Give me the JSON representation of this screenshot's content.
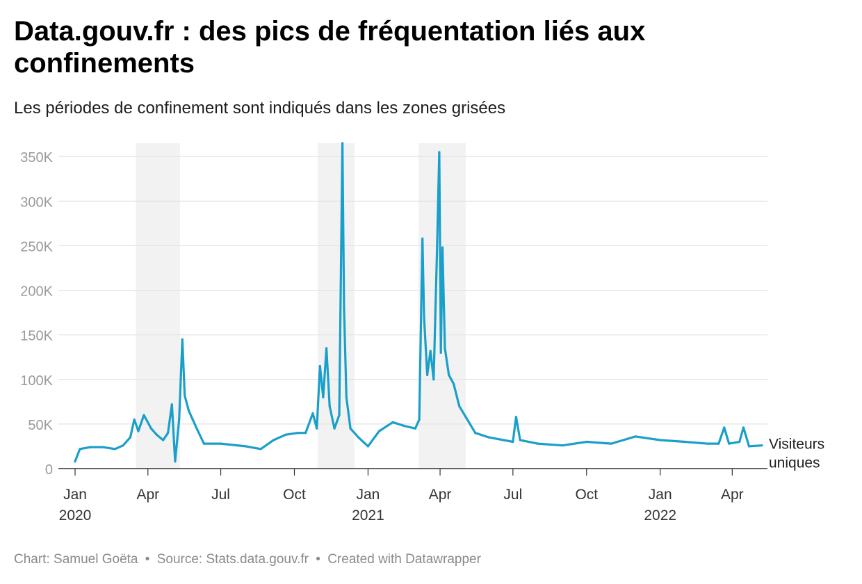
{
  "header": {
    "title": "Data.gouv.fr : des pics de fréquentation liés aux confinements",
    "subtitle": "Les périodes de confinement sont indiqués dans les zones grisées"
  },
  "footer": {
    "chart_credit": "Chart: Samuel Goëta",
    "source": "Source: Stats.data.gouv.fr",
    "tool": "Created with Datawrapper",
    "separator": "•"
  },
  "colors": {
    "line": "#1a9fcb",
    "shade": "#f2f2f2",
    "grid": "#e3e3e3",
    "axis_text": "#9a9a9a",
    "date_text": "#333333"
  },
  "chart_data": {
    "type": "line",
    "title": "Data.gouv.fr : des pics de fréquentation liés aux confinements",
    "subtitle": "Les périodes de confinement sont indiqués dans les zones grisées",
    "ylim": [
      0,
      365000
    ],
    "y_ticks": [
      0,
      50000,
      100000,
      150000,
      200000,
      250000,
      300000,
      350000
    ],
    "y_tick_labels": [
      "0",
      "50K",
      "100K",
      "150K",
      "200K",
      "250K",
      "300K",
      "350K"
    ],
    "x_range": [
      "2020-01-01",
      "2022-05-15"
    ],
    "x_ticks": [
      {
        "date": "2020-01-01",
        "label": "Jan",
        "year": "2020"
      },
      {
        "date": "2020-04-01",
        "label": "Apr",
        "year": ""
      },
      {
        "date": "2020-07-01",
        "label": "Jul",
        "year": ""
      },
      {
        "date": "2020-10-01",
        "label": "Oct",
        "year": ""
      },
      {
        "date": "2021-01-01",
        "label": "Jan",
        "year": "2021"
      },
      {
        "date": "2021-04-01",
        "label": "Apr",
        "year": ""
      },
      {
        "date": "2021-07-01",
        "label": "Jul",
        "year": ""
      },
      {
        "date": "2021-10-01",
        "label": "Oct",
        "year": ""
      },
      {
        "date": "2022-01-01",
        "label": "Jan",
        "year": "2022"
      },
      {
        "date": "2022-04-01",
        "label": "Apr",
        "year": ""
      }
    ],
    "grid": true,
    "shaded_periods": [
      {
        "start": "2020-03-17",
        "end": "2020-05-11"
      },
      {
        "start": "2020-10-30",
        "end": "2020-12-15"
      },
      {
        "start": "2021-03-05",
        "end": "2021-05-03"
      }
    ],
    "series": [
      {
        "name": "Visiteurs uniques",
        "label_lines": [
          "Visiteurs",
          "uniques"
        ],
        "points": [
          [
            "2020-01-01",
            8000
          ],
          [
            "2020-01-07",
            22000
          ],
          [
            "2020-01-20",
            24000
          ],
          [
            "2020-02-05",
            24000
          ],
          [
            "2020-02-20",
            22000
          ],
          [
            "2020-03-01",
            26000
          ],
          [
            "2020-03-10",
            35000
          ],
          [
            "2020-03-15",
            55000
          ],
          [
            "2020-03-20",
            42000
          ],
          [
            "2020-03-27",
            60000
          ],
          [
            "2020-04-05",
            45000
          ],
          [
            "2020-04-12",
            38000
          ],
          [
            "2020-04-20",
            32000
          ],
          [
            "2020-04-26",
            40000
          ],
          [
            "2020-05-01",
            72000
          ],
          [
            "2020-05-05",
            8000
          ],
          [
            "2020-05-10",
            55000
          ],
          [
            "2020-05-14",
            145000
          ],
          [
            "2020-05-17",
            82000
          ],
          [
            "2020-05-22",
            65000
          ],
          [
            "2020-06-01",
            45000
          ],
          [
            "2020-06-10",
            28000
          ],
          [
            "2020-07-01",
            28000
          ],
          [
            "2020-08-01",
            25000
          ],
          [
            "2020-08-20",
            22000
          ],
          [
            "2020-09-05",
            32000
          ],
          [
            "2020-09-20",
            38000
          ],
          [
            "2020-10-05",
            40000
          ],
          [
            "2020-10-15",
            40000
          ],
          [
            "2020-10-24",
            62000
          ],
          [
            "2020-10-29",
            45000
          ],
          [
            "2020-11-02",
            115000
          ],
          [
            "2020-11-06",
            80000
          ],
          [
            "2020-11-10",
            135000
          ],
          [
            "2020-11-14",
            70000
          ],
          [
            "2020-11-20",
            45000
          ],
          [
            "2020-11-26",
            60000
          ],
          [
            "2020-11-30",
            365000
          ],
          [
            "2020-12-02",
            180000
          ],
          [
            "2020-12-05",
            80000
          ],
          [
            "2020-12-10",
            45000
          ],
          [
            "2020-12-20",
            35000
          ],
          [
            "2021-01-01",
            25000
          ],
          [
            "2021-01-15",
            42000
          ],
          [
            "2021-02-01",
            52000
          ],
          [
            "2021-02-15",
            48000
          ],
          [
            "2021-03-01",
            45000
          ],
          [
            "2021-03-06",
            55000
          ],
          [
            "2021-03-10",
            258000
          ],
          [
            "2021-03-12",
            170000
          ],
          [
            "2021-03-16",
            105000
          ],
          [
            "2021-03-20",
            132000
          ],
          [
            "2021-03-24",
            100000
          ],
          [
            "2021-03-28",
            240000
          ],
          [
            "2021-03-31",
            355000
          ],
          [
            "2021-04-02",
            130000
          ],
          [
            "2021-04-04",
            248000
          ],
          [
            "2021-04-07",
            135000
          ],
          [
            "2021-04-12",
            105000
          ],
          [
            "2021-04-18",
            95000
          ],
          [
            "2021-04-25",
            70000
          ],
          [
            "2021-05-03",
            58000
          ],
          [
            "2021-05-15",
            40000
          ],
          [
            "2021-06-01",
            35000
          ],
          [
            "2021-07-01",
            30000
          ],
          [
            "2021-07-05",
            58000
          ],
          [
            "2021-07-10",
            32000
          ],
          [
            "2021-08-01",
            28000
          ],
          [
            "2021-09-01",
            26000
          ],
          [
            "2021-10-01",
            30000
          ],
          [
            "2021-11-01",
            28000
          ],
          [
            "2021-12-01",
            36000
          ],
          [
            "2022-01-01",
            32000
          ],
          [
            "2022-02-01",
            30000
          ],
          [
            "2022-03-01",
            28000
          ],
          [
            "2022-03-15",
            28000
          ],
          [
            "2022-03-22",
            46000
          ],
          [
            "2022-03-28",
            28000
          ],
          [
            "2022-04-10",
            30000
          ],
          [
            "2022-04-15",
            46000
          ],
          [
            "2022-04-22",
            25000
          ],
          [
            "2022-05-08",
            26000
          ]
        ]
      }
    ]
  }
}
